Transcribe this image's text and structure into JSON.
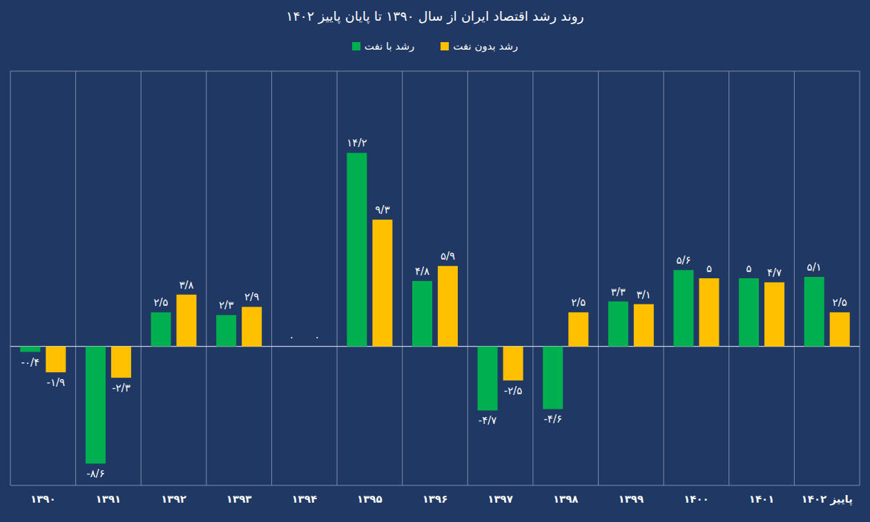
{
  "chart_data": {
    "type": "bar",
    "title": "روند رشد اقتصاد ایران از سال ۱۳۹۰ تا پایان پاییز ۱۴۰۲",
    "categories": [
      "۱۳۹۰",
      "۱۳۹۱",
      "۱۳۹۲",
      "۱۳۹۳",
      "۱۳۹۴",
      "۱۳۹۵",
      "۱۳۹۶",
      "۱۳۹۷",
      "۱۳۹۸",
      "۱۳۹۹",
      "۱۴۰۰",
      "۱۴۰۱",
      "پاییز ۱۴۰۲"
    ],
    "series": [
      {
        "name": "رشد با نفت",
        "color": "#00b050",
        "values": [
          -0.4,
          -8.6,
          2.5,
          2.3,
          0,
          14.2,
          4.8,
          -4.7,
          -4.6,
          3.3,
          5.6,
          5,
          5.1
        ],
        "value_labels": [
          "-۰/۴",
          "-۸/۶",
          "۲/۵",
          "۲/۳",
          "۰",
          "۱۴/۲",
          "۴/۸",
          "-۴/۷",
          "-۴/۶",
          "۳/۳",
          "۵/۶",
          "۵",
          "۵/۱"
        ]
      },
      {
        "name": "رشد بدون نفت",
        "color": "#ffc000",
        "values": [
          -1.9,
          -2.3,
          3.8,
          2.9,
          0,
          9.3,
          5.9,
          -2.5,
          2.5,
          3.1,
          5,
          4.7,
          2.5
        ],
        "value_labels": [
          "-۱/۹",
          "-۲/۳",
          "۳/۸",
          "۲/۹",
          "۰",
          "۹/۳",
          "۵/۹",
          "-۲/۵",
          "۲/۵",
          "۳/۱",
          "۵",
          "۴/۷",
          "۲/۵"
        ]
      }
    ],
    "ylim": [
      -10.2,
      20.2
    ],
    "yticks": [
      0
    ],
    "grid": true,
    "legend": "top",
    "data_labels": true,
    "tick_labels": "x"
  }
}
